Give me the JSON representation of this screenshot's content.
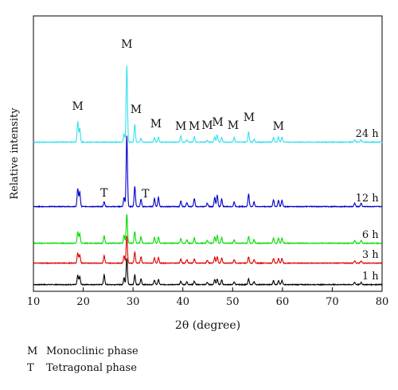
{
  "chart_data": {
    "type": "line",
    "xlabel": "2θ (degree)",
    "ylabel": "Relative intensity",
    "xlim": [
      10,
      80
    ],
    "x_ticks": [
      "10",
      "20",
      "30",
      "40",
      "50",
      "60",
      "70",
      "80"
    ],
    "grid": false,
    "series": [
      {
        "name": "1 h",
        "color": "#000000",
        "offset": 0,
        "peaks": [
          [
            18.9,
            1.6
          ],
          [
            19.3,
            1.4
          ],
          [
            24.2,
            1.7
          ],
          [
            28.2,
            1.2
          ],
          [
            28.75,
            4.6
          ],
          [
            30.35,
            1.7
          ],
          [
            31.6,
            1.0
          ],
          [
            34.3,
            0.8
          ],
          [
            35.1,
            0.9
          ],
          [
            39.6,
            0.6
          ],
          [
            40.8,
            0.5
          ],
          [
            42.3,
            0.6
          ],
          [
            44.9,
            0.4
          ],
          [
            46.4,
            0.9
          ],
          [
            46.9,
            1.0
          ],
          [
            47.8,
            0.8
          ],
          [
            50.3,
            0.5
          ],
          [
            53.2,
            1.0
          ],
          [
            54.3,
            0.5
          ],
          [
            58.2,
            0.7
          ],
          [
            59.2,
            0.7
          ],
          [
            59.9,
            0.7
          ],
          [
            74.5,
            0.4
          ],
          [
            75.8,
            0.4
          ]
        ]
      },
      {
        "name": "3 h",
        "color": "#e00000",
        "offset": 1,
        "peaks": [
          [
            18.9,
            1.8
          ],
          [
            19.3,
            1.5
          ],
          [
            24.2,
            1.3
          ],
          [
            28.2,
            1.3
          ],
          [
            28.75,
            4.7
          ],
          [
            30.35,
            1.9
          ],
          [
            31.6,
            1.1
          ],
          [
            34.3,
            0.9
          ],
          [
            35.1,
            1.0
          ],
          [
            39.6,
            0.7
          ],
          [
            40.8,
            0.6
          ],
          [
            42.3,
            0.7
          ],
          [
            44.9,
            0.5
          ],
          [
            46.4,
            1.0
          ],
          [
            46.9,
            1.1
          ],
          [
            47.8,
            0.9
          ],
          [
            50.3,
            0.6
          ],
          [
            53.2,
            1.1
          ],
          [
            54.3,
            0.6
          ],
          [
            58.2,
            0.8
          ],
          [
            59.2,
            0.8
          ],
          [
            59.9,
            0.8
          ],
          [
            74.5,
            0.4
          ],
          [
            75.8,
            0.4
          ]
        ]
      },
      {
        "name": "6 h",
        "color": "#00dd00",
        "offset": 2,
        "peaks": [
          [
            18.9,
            2.0
          ],
          [
            19.3,
            1.7
          ],
          [
            24.2,
            1.3
          ],
          [
            28.2,
            1.4
          ],
          [
            28.75,
            5.1
          ],
          [
            30.35,
            2.0
          ],
          [
            31.6,
            1.1
          ],
          [
            34.3,
            1.0
          ],
          [
            35.1,
            1.1
          ],
          [
            39.6,
            0.8
          ],
          [
            40.8,
            0.6
          ],
          [
            42.3,
            0.9
          ],
          [
            44.9,
            0.5
          ],
          [
            46.4,
            1.1
          ],
          [
            46.9,
            1.3
          ],
          [
            47.8,
            1.0
          ],
          [
            50.3,
            0.6
          ],
          [
            53.2,
            1.2
          ],
          [
            54.3,
            0.6
          ],
          [
            58.2,
            0.9
          ],
          [
            59.2,
            0.9
          ],
          [
            59.9,
            0.9
          ],
          [
            74.5,
            0.5
          ],
          [
            75.8,
            0.5
          ]
        ]
      },
      {
        "name": "12 h",
        "color": "#0000cc",
        "offset": 3,
        "peaks": [
          [
            18.9,
            3.2
          ],
          [
            19.3,
            2.6
          ],
          [
            24.2,
            0.8
          ],
          [
            28.2,
            1.6
          ],
          [
            28.75,
            12.4
          ],
          [
            30.35,
            3.5
          ],
          [
            31.6,
            1.3
          ],
          [
            34.3,
            1.4
          ],
          [
            35.1,
            1.6
          ],
          [
            39.6,
            1.0
          ],
          [
            40.8,
            0.7
          ],
          [
            42.3,
            1.4
          ],
          [
            44.9,
            0.6
          ],
          [
            46.4,
            1.6
          ],
          [
            46.9,
            2.0
          ],
          [
            47.8,
            1.3
          ],
          [
            50.3,
            0.8
          ],
          [
            53.2,
            2.2
          ],
          [
            54.3,
            0.8
          ],
          [
            58.2,
            1.2
          ],
          [
            59.2,
            1.1
          ],
          [
            59.9,
            1.1
          ],
          [
            74.5,
            0.6
          ],
          [
            75.8,
            0.6
          ]
        ]
      },
      {
        "name": "24 h",
        "color": "#33e0ee",
        "offset": 4,
        "peaks": [
          [
            18.9,
            3.6
          ],
          [
            19.3,
            2.4
          ],
          [
            28.2,
            1.4
          ],
          [
            28.75,
            13.4
          ],
          [
            30.35,
            3.1
          ],
          [
            31.6,
            0.7
          ],
          [
            34.3,
            0.8
          ],
          [
            35.1,
            0.9
          ],
          [
            39.6,
            1.1
          ],
          [
            40.8,
            0.4
          ],
          [
            42.3,
            0.9
          ],
          [
            44.9,
            0.3
          ],
          [
            46.4,
            0.9
          ],
          [
            46.9,
            1.2
          ],
          [
            47.8,
            0.8
          ],
          [
            50.3,
            0.8
          ],
          [
            53.2,
            1.8
          ],
          [
            54.3,
            0.5
          ],
          [
            58.2,
            0.8
          ],
          [
            59.2,
            0.9
          ],
          [
            59.9,
            0.9
          ],
          [
            74.5,
            0.4
          ],
          [
            75.8,
            0.4
          ]
        ]
      }
    ],
    "annotations": [
      {
        "text": "M",
        "x": 18.9
      },
      {
        "text": "M",
        "x": 28.75
      },
      {
        "text": "M",
        "x": 30.6
      },
      {
        "text": "M",
        "x": 34.6
      },
      {
        "text": "M",
        "x": 39.6
      },
      {
        "text": "M",
        "x": 42.3
      },
      {
        "text": "M",
        "x": 44.9
      },
      {
        "text": "M",
        "x": 47.0
      },
      {
        "text": "M",
        "x": 50.1
      },
      {
        "text": "M",
        "x": 53.3
      },
      {
        "text": "M",
        "x": 59.2
      },
      {
        "text": "T",
        "x": 24.2
      },
      {
        "text": "T",
        "x": 32.5
      }
    ]
  },
  "legend": {
    "m_symbol": "M",
    "m_label": "Monoclinic phase",
    "t_symbol": "T",
    "t_label": "Tetragonal phase"
  }
}
